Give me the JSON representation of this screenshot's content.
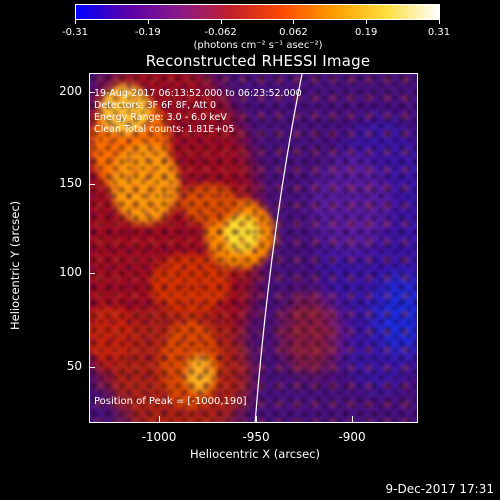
{
  "colorbar": {
    "ticks": [
      "-0.31",
      "-0.19",
      "-0.062",
      "0.062",
      "0.19",
      "0.31"
    ],
    "units": "(photons cm⁻² s⁻¹ asec⁻²)"
  },
  "title": "Reconstructed RHESSI Image",
  "info": {
    "line1": "19-Aug-2017 06:13:52.000 to 06:23:52.000",
    "line2": "Detectors: 3F 6F 8F, Att 0",
    "line3": "Energy Range: 3.0 - 6.0 keV",
    "line4": "Clean    Total counts: 1.81E+05",
    "peak": "Position of Peak = [-1000,190]"
  },
  "axes": {
    "ylabel": "Heliocentric Y (arcsec)",
    "xlabel": "Heliocentric X (arcsec)",
    "yticks": [
      "200",
      "150",
      "100",
      "50"
    ],
    "xticks": [
      "-1000",
      "-950",
      "-900"
    ]
  },
  "timestamp": "9-Dec-2017 17:31",
  "colors": {
    "background": "#000000",
    "colormap": [
      "#0000ff",
      "#5a00a8",
      "#8a1a8a",
      "#c2202a",
      "#ff4a00",
      "#ffa000",
      "#ffe040",
      "#ffffff"
    ]
  }
}
